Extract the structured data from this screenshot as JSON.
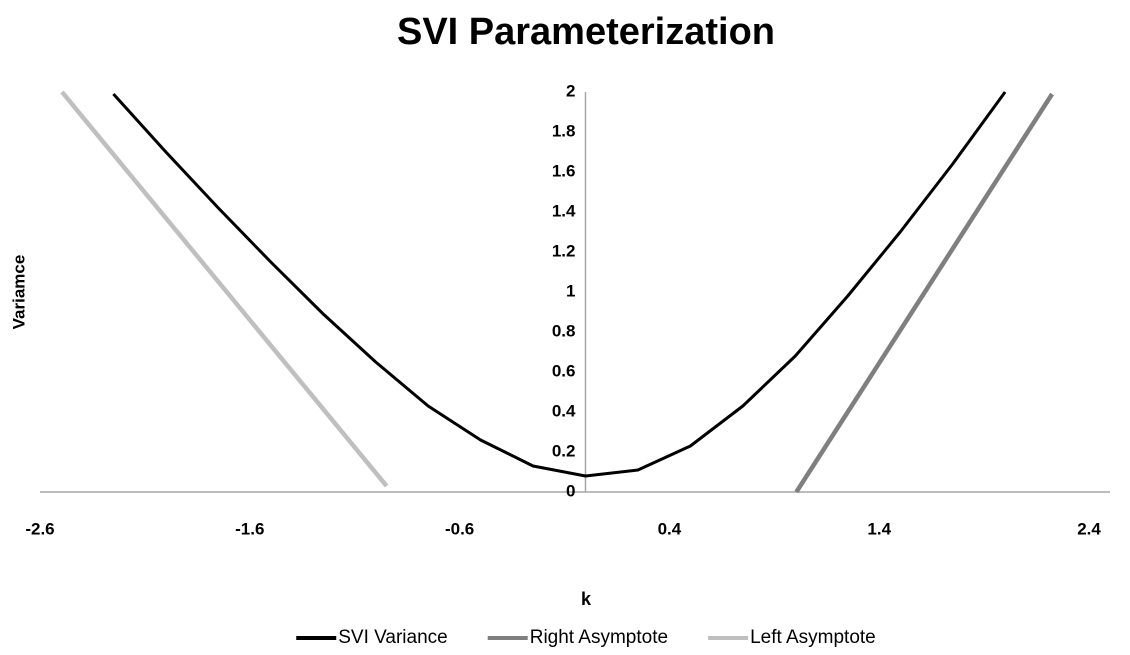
{
  "chart_data": {
    "type": "line",
    "title": "SVI Parameterization",
    "x_label": "k",
    "y_label": "Variamce",
    "xlim": [
      -2.6,
      2.5
    ],
    "xticks": [
      -2.6,
      -1.6,
      -0.6,
      0.4,
      1.4,
      2.4
    ],
    "ylim": [
      0,
      2
    ],
    "yticks": [
      0,
      0.2,
      0.4,
      0.6,
      0.8,
      1,
      1.2,
      1.4,
      1.6,
      1.8,
      2
    ],
    "grid": false,
    "legend": "bottom",
    "series": [
      {
        "name": "SVI Variance",
        "color": "#000000",
        "x": [
          -2.25,
          -2,
          -1.75,
          -1.5,
          -1.25,
          -1,
          -0.75,
          -0.5,
          -0.25,
          0,
          0.25,
          0.5,
          0.75,
          1,
          1.25,
          1.5,
          1.75,
          2
        ],
        "values": [
          1.99,
          1.7,
          1.42,
          1.15,
          0.89,
          0.65,
          0.43,
          0.26,
          0.13,
          0.08,
          0.11,
          0.23,
          0.43,
          0.68,
          0.98,
          1.3,
          1.64,
          2.0
        ]
      },
      {
        "name": "Right Asymptote",
        "color": "#7f7f7f",
        "x": [
          1.005,
          2.224
        ],
        "values": [
          0,
          1.99
        ]
      },
      {
        "name": "Left Asymptote",
        "color": "#bfbfbf",
        "x": [
          -2.495,
          -0.948
        ],
        "values": [
          2,
          0.03
        ]
      }
    ]
  }
}
